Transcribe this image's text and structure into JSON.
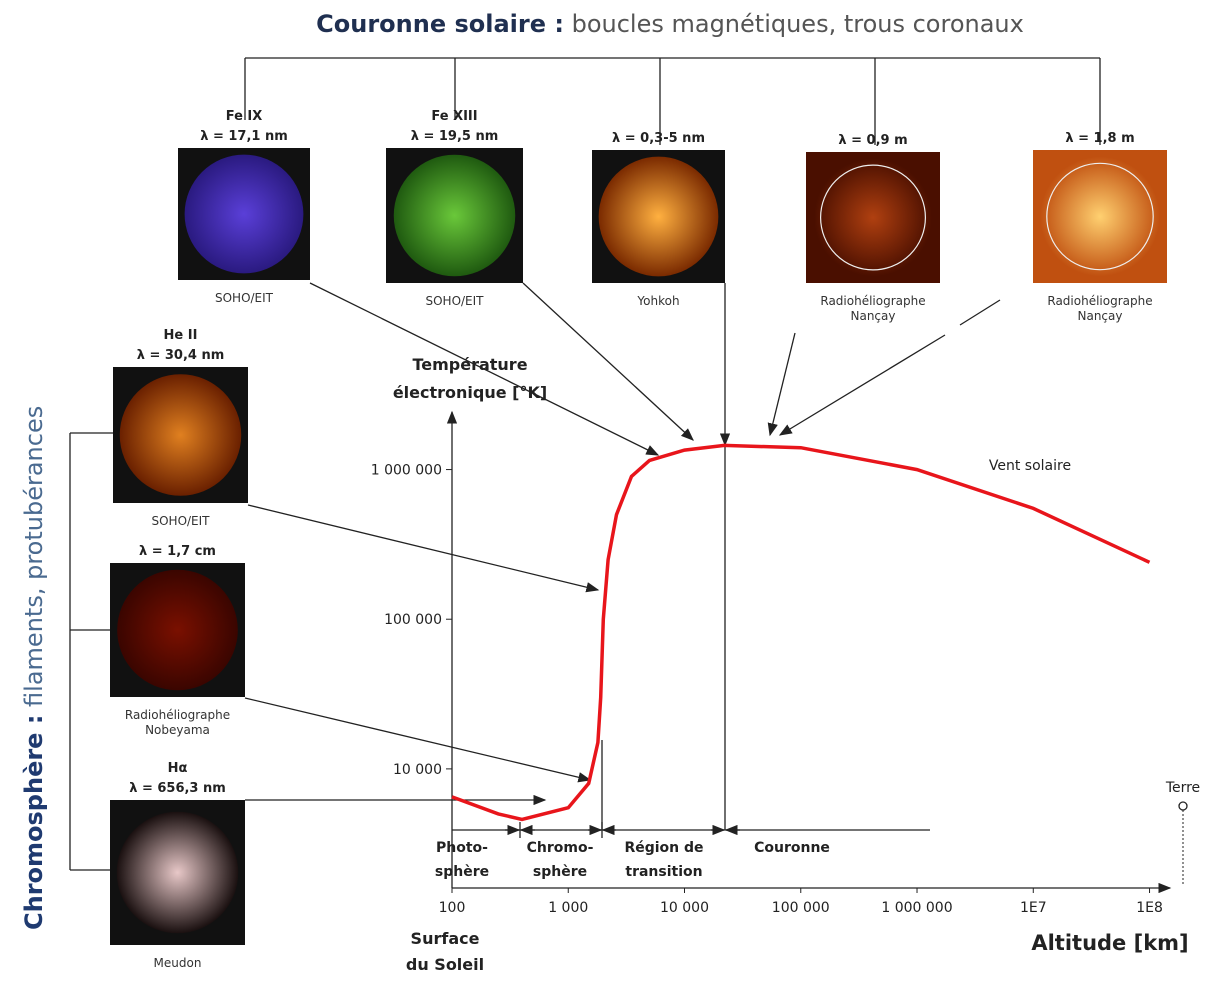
{
  "title_bold": "Couronne solaire :",
  "title_light": "boucles magnétiques, trous coronaux",
  "side_bold": "Chromosphère :",
  "side_light": "filaments, protubérances",
  "panels": [
    {
      "label": [
        "Fe IX",
        "λ = 17,1 nm"
      ],
      "caption": [
        "SOHO/EIT"
      ]
    },
    {
      "label": [
        "Fe XIII",
        "λ = 19,5 nm"
      ],
      "caption": [
        "SOHO/EIT"
      ]
    },
    {
      "label": [
        "λ = 0,3-5 nm"
      ],
      "caption": [
        "Yohkoh"
      ]
    },
    {
      "label": [
        "λ = 0,9 m"
      ],
      "caption": [
        "Radiohéliographe",
        "Nançay"
      ]
    },
    {
      "label": [
        "λ = 1,8 m"
      ],
      "caption": [
        "Radiohéliographe",
        "Nançay"
      ]
    },
    {
      "label": [
        "He II",
        "λ = 30,4 nm"
      ],
      "caption": [
        "SOHO/EIT"
      ]
    },
    {
      "label": [
        "λ = 1,7 cm"
      ],
      "caption": [
        "Radiohéliographe",
        "Nobeyama"
      ]
    },
    {
      "label": [
        "Hα",
        "λ = 656,3 nm"
      ],
      "caption": [
        "Meudon"
      ]
    }
  ],
  "chart_data": {
    "type": "line",
    "log_x": true,
    "log_y": true,
    "y_label": [
      "Température",
      "électronique [°K]"
    ],
    "x_label": "Altitude [km]",
    "x_origin_label": [
      "Surface",
      "du Soleil"
    ],
    "regions": [
      [
        "Photo-",
        "sphère"
      ],
      [
        "Chromo-",
        "sphère"
      ],
      [
        "Région de",
        "transition"
      ],
      [
        "Couronne"
      ]
    ],
    "wind_label": "Vent solaire",
    "earth_label": "Terre",
    "x": [
      100,
      250,
      400,
      1000,
      1500,
      1800,
      1900,
      2000,
      2200,
      2600,
      3500,
      5000,
      10000,
      22000,
      100000,
      1000000,
      10000000,
      100000000
    ],
    "series": [
      {
        "color": "#e8151b",
        "values": [
          6500,
          5000,
          4600,
          5500,
          8000,
          15000,
          30000,
          100000,
          250000,
          500000,
          900000,
          1150000,
          1350000,
          1450000,
          1400000,
          1000000,
          550000,
          240000
        ]
      }
    ],
    "xlim": [
      100,
      150000000
    ],
    "ylim": [
      1600,
      2500000
    ],
    "xticks": [
      100,
      {
        "value": 1000,
        "label": "1 000"
      },
      {
        "value": 10000,
        "label": "10 000"
      },
      {
        "value": 100000,
        "label": "100 000"
      },
      {
        "value": 1000000,
        "label": "1 000 000"
      },
      {
        "value": 10000000,
        "label": "1E7"
      },
      {
        "value": 100000000,
        "label": "1E8"
      }
    ],
    "yticks": [
      {
        "value": 10000,
        "label": "10 000"
      },
      {
        "value": 100000,
        "label": "100 000"
      },
      {
        "value": 1000000,
        "label": "1 000 000"
      }
    ]
  }
}
